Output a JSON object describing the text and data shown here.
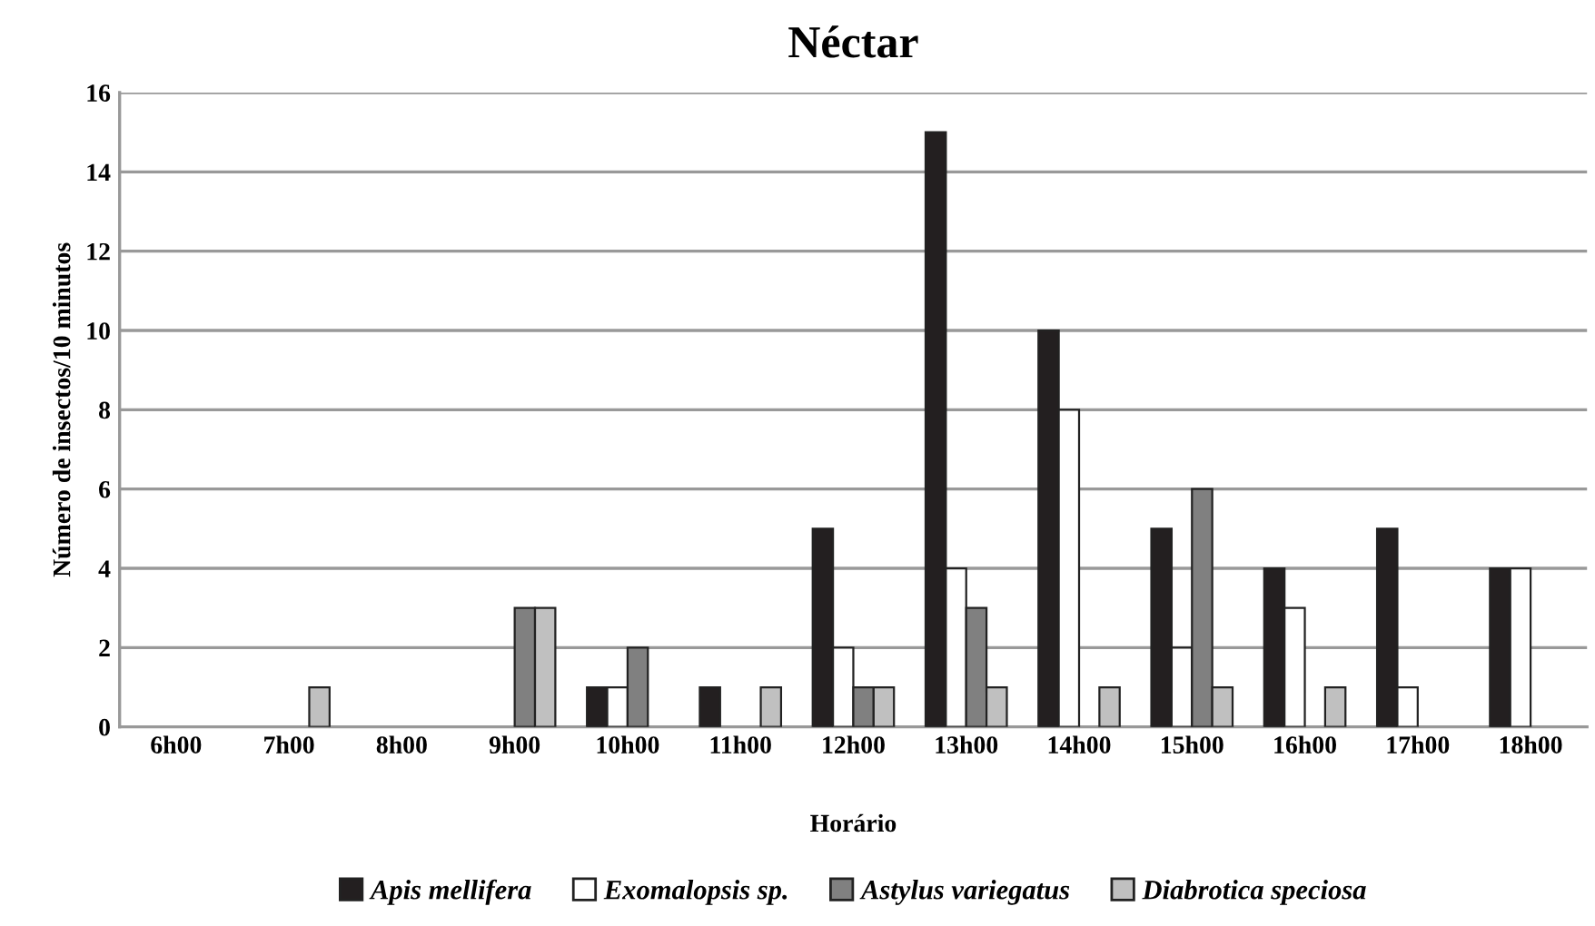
{
  "chart_data": {
    "type": "bar",
    "title": "Néctar",
    "xlabel": "Horário",
    "ylabel": "Número de insectos/10 minutos",
    "categories": [
      "6h00",
      "7h00",
      "8h00",
      "9h00",
      "10h00",
      "11h00",
      "12h00",
      "13h00",
      "14h00",
      "15h00",
      "16h00",
      "17h00",
      "18h00"
    ],
    "series": [
      {
        "name": "Apis mellifera",
        "color": "#231f20",
        "values": [
          0,
          0,
          0,
          0,
          1,
          1,
          5,
          15,
          10,
          5,
          4,
          5,
          4
        ]
      },
      {
        "name": "Exomalopsis sp.",
        "color": "#ffffff",
        "values": [
          0,
          0,
          0,
          0,
          1,
          0,
          2,
          4,
          8,
          2,
          3,
          1,
          4
        ]
      },
      {
        "name": "Astylus variegatus",
        "color": "#808080",
        "values": [
          0,
          0,
          0,
          3,
          2,
          0,
          1,
          3,
          0,
          6,
          0,
          0,
          0
        ]
      },
      {
        "name": "Diabrotica speciosa",
        "color": "#c0c0c0",
        "values": [
          0,
          1,
          0,
          3,
          0,
          1,
          1,
          1,
          1,
          1,
          1,
          0,
          0
        ]
      }
    ],
    "ylim": [
      0,
      16
    ],
    "yticks": [
      0,
      2,
      4,
      6,
      8,
      10,
      12,
      14,
      16
    ],
    "grid": "y",
    "legend": "bottom"
  }
}
